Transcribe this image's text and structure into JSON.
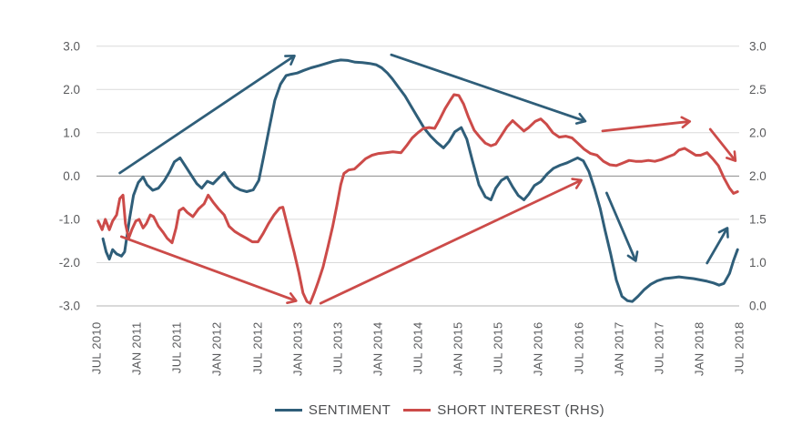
{
  "chart_data": {
    "type": "line",
    "title": "",
    "x_axis": {
      "tick_labels": [
        "JUL 2010",
        "JAN 2011",
        "JUL 2011",
        "JAN 2012",
        "JUL 2012",
        "JAN 2013",
        "JUL 2013",
        "JAN 2014",
        "JUL 2014",
        "JAN 2015",
        "JUL 2015",
        "JAN 2016",
        "JUL 2016",
        "JAN 2017",
        "JUL 2017",
        "JAN 2018",
        "JUL 2018"
      ],
      "range_years": [
        2010.5,
        2018.5
      ]
    },
    "left_axis": {
      "tick_labels": [
        "3.0",
        "2.0",
        "1.0",
        "0.0",
        "-1.0",
        "-2.0",
        "-3.0"
      ],
      "range": [
        -3,
        3
      ]
    },
    "right_axis": {
      "tick_labels": [
        "3.0",
        "2.5",
        "2.0",
        "2.0",
        "1.5",
        "1.0",
        "0.0"
      ],
      "range": [
        0,
        3
      ]
    },
    "grid": {
      "color": "#dadada",
      "zero_line_color": "#8c8c8c",
      "bottom_line_color": "#b3b3b3"
    },
    "series": [
      {
        "name": "SENTIMENT",
        "axis": "lhs",
        "color": "#2f5e79",
        "points": [
          [
            2010.58,
            -1.45
          ],
          [
            2010.62,
            -1.75
          ],
          [
            2010.66,
            -1.92
          ],
          [
            2010.7,
            -1.7
          ],
          [
            2010.75,
            -1.8
          ],
          [
            2010.81,
            -1.85
          ],
          [
            2010.85,
            -1.75
          ],
          [
            2010.91,
            -1.0
          ],
          [
            2010.96,
            -0.45
          ],
          [
            2011.02,
            -0.15
          ],
          [
            2011.08,
            -0.02
          ],
          [
            2011.13,
            -0.2
          ],
          [
            2011.2,
            -0.33
          ],
          [
            2011.27,
            -0.28
          ],
          [
            2011.34,
            -0.12
          ],
          [
            2011.41,
            0.1
          ],
          [
            2011.47,
            0.33
          ],
          [
            2011.54,
            0.42
          ],
          [
            2011.61,
            0.22
          ],
          [
            2011.68,
            0.02
          ],
          [
            2011.75,
            -0.18
          ],
          [
            2011.81,
            -0.28
          ],
          [
            2011.88,
            -0.12
          ],
          [
            2011.95,
            -0.18
          ],
          [
            2012.02,
            -0.05
          ],
          [
            2012.09,
            0.08
          ],
          [
            2012.15,
            -0.1
          ],
          [
            2012.22,
            -0.25
          ],
          [
            2012.29,
            -0.32
          ],
          [
            2012.37,
            -0.36
          ],
          [
            2012.45,
            -0.32
          ],
          [
            2012.52,
            -0.1
          ],
          [
            2012.58,
            0.45
          ],
          [
            2012.65,
            1.1
          ],
          [
            2012.72,
            1.75
          ],
          [
            2012.79,
            2.12
          ],
          [
            2012.86,
            2.32
          ],
          [
            2012.92,
            2.35
          ],
          [
            2013.0,
            2.38
          ],
          [
            2013.08,
            2.44
          ],
          [
            2013.17,
            2.5
          ],
          [
            2013.27,
            2.55
          ],
          [
            2013.36,
            2.6
          ],
          [
            2013.45,
            2.65
          ],
          [
            2013.54,
            2.68
          ],
          [
            2013.63,
            2.67
          ],
          [
            2013.72,
            2.63
          ],
          [
            2013.81,
            2.62
          ],
          [
            2013.9,
            2.6
          ],
          [
            2013.98,
            2.57
          ],
          [
            2014.05,
            2.5
          ],
          [
            2014.12,
            2.38
          ],
          [
            2014.18,
            2.25
          ],
          [
            2014.26,
            2.05
          ],
          [
            2014.34,
            1.85
          ],
          [
            2014.42,
            1.6
          ],
          [
            2014.5,
            1.35
          ],
          [
            2014.58,
            1.1
          ],
          [
            2014.66,
            0.92
          ],
          [
            2014.74,
            0.77
          ],
          [
            2014.82,
            0.65
          ],
          [
            2014.89,
            0.8
          ],
          [
            2014.96,
            1.02
          ],
          [
            2015.04,
            1.12
          ],
          [
            2015.11,
            0.85
          ],
          [
            2015.18,
            0.35
          ],
          [
            2015.26,
            -0.2
          ],
          [
            2015.34,
            -0.48
          ],
          [
            2015.41,
            -0.55
          ],
          [
            2015.47,
            -0.28
          ],
          [
            2015.54,
            -0.1
          ],
          [
            2015.61,
            -0.02
          ],
          [
            2015.68,
            -0.25
          ],
          [
            2015.75,
            -0.45
          ],
          [
            2015.82,
            -0.55
          ],
          [
            2015.88,
            -0.42
          ],
          [
            2015.95,
            -0.22
          ],
          [
            2016.03,
            -0.13
          ],
          [
            2016.11,
            0.05
          ],
          [
            2016.19,
            0.18
          ],
          [
            2016.27,
            0.25
          ],
          [
            2016.35,
            0.3
          ],
          [
            2016.43,
            0.37
          ],
          [
            2016.49,
            0.42
          ],
          [
            2016.56,
            0.35
          ],
          [
            2016.63,
            0.1
          ],
          [
            2016.7,
            -0.3
          ],
          [
            2016.77,
            -0.75
          ],
          [
            2016.83,
            -1.25
          ],
          [
            2016.9,
            -1.8
          ],
          [
            2016.97,
            -2.4
          ],
          [
            2017.04,
            -2.78
          ],
          [
            2017.11,
            -2.88
          ],
          [
            2017.17,
            -2.9
          ],
          [
            2017.24,
            -2.78
          ],
          [
            2017.32,
            -2.62
          ],
          [
            2017.4,
            -2.5
          ],
          [
            2017.48,
            -2.42
          ],
          [
            2017.57,
            -2.37
          ],
          [
            2017.66,
            -2.35
          ],
          [
            2017.75,
            -2.33
          ],
          [
            2017.84,
            -2.35
          ],
          [
            2017.93,
            -2.37
          ],
          [
            2018.02,
            -2.4
          ],
          [
            2018.1,
            -2.43
          ],
          [
            2018.18,
            -2.47
          ],
          [
            2018.25,
            -2.52
          ],
          [
            2018.31,
            -2.48
          ],
          [
            2018.38,
            -2.25
          ],
          [
            2018.43,
            -1.95
          ],
          [
            2018.48,
            -1.7
          ]
        ]
      },
      {
        "name": "SHORT INTEREST (RHS)",
        "axis": "rhs",
        "color": "#cc4b49",
        "points": [
          [
            2010.52,
            0.98
          ],
          [
            2010.57,
            0.88
          ],
          [
            2010.61,
            1.0
          ],
          [
            2010.66,
            0.88
          ],
          [
            2010.7,
            0.98
          ],
          [
            2010.75,
            1.05
          ],
          [
            2010.79,
            1.24
          ],
          [
            2010.83,
            1.28
          ],
          [
            2010.86,
            0.95
          ],
          [
            2010.9,
            0.78
          ],
          [
            2010.94,
            0.88
          ],
          [
            2010.99,
            0.98
          ],
          [
            2011.03,
            1.0
          ],
          [
            2011.08,
            0.9
          ],
          [
            2011.12,
            0.95
          ],
          [
            2011.17,
            1.05
          ],
          [
            2011.21,
            1.03
          ],
          [
            2011.27,
            0.92
          ],
          [
            2011.33,
            0.85
          ],
          [
            2011.38,
            0.78
          ],
          [
            2011.44,
            0.73
          ],
          [
            2011.49,
            0.9
          ],
          [
            2011.53,
            1.1
          ],
          [
            2011.58,
            1.13
          ],
          [
            2011.63,
            1.08
          ],
          [
            2011.7,
            1.03
          ],
          [
            2011.77,
            1.12
          ],
          [
            2011.84,
            1.18
          ],
          [
            2011.89,
            1.28
          ],
          [
            2011.95,
            1.2
          ],
          [
            2012.02,
            1.12
          ],
          [
            2012.09,
            1.05
          ],
          [
            2012.15,
            0.92
          ],
          [
            2012.22,
            0.86
          ],
          [
            2012.29,
            0.82
          ],
          [
            2012.37,
            0.78
          ],
          [
            2012.44,
            0.74
          ],
          [
            2012.51,
            0.74
          ],
          [
            2012.57,
            0.83
          ],
          [
            2012.64,
            0.95
          ],
          [
            2012.71,
            1.05
          ],
          [
            2012.78,
            1.13
          ],
          [
            2012.82,
            1.14
          ],
          [
            2012.87,
            0.95
          ],
          [
            2012.91,
            0.8
          ],
          [
            2012.96,
            0.62
          ],
          [
            2013.02,
            0.38
          ],
          [
            2013.07,
            0.15
          ],
          [
            2013.12,
            0.05
          ],
          [
            2013.16,
            0.03
          ],
          [
            2013.21,
            0.15
          ],
          [
            2013.26,
            0.28
          ],
          [
            2013.32,
            0.45
          ],
          [
            2013.38,
            0.68
          ],
          [
            2013.44,
            0.92
          ],
          [
            2013.49,
            1.15
          ],
          [
            2013.54,
            1.4
          ],
          [
            2013.58,
            1.53
          ],
          [
            2013.64,
            1.57
          ],
          [
            2013.71,
            1.58
          ],
          [
            2013.78,
            1.64
          ],
          [
            2013.85,
            1.7
          ],
          [
            2013.93,
            1.74
          ],
          [
            2014.01,
            1.76
          ],
          [
            2014.1,
            1.77
          ],
          [
            2014.19,
            1.78
          ],
          [
            2014.29,
            1.77
          ],
          [
            2014.36,
            1.85
          ],
          [
            2014.43,
            1.94
          ],
          [
            2014.5,
            2.0
          ],
          [
            2014.57,
            2.05
          ],
          [
            2014.64,
            2.06
          ],
          [
            2014.71,
            2.05
          ],
          [
            2014.77,
            2.15
          ],
          [
            2014.84,
            2.28
          ],
          [
            2014.9,
            2.37
          ],
          [
            2014.95,
            2.44
          ],
          [
            2015.01,
            2.43
          ],
          [
            2015.07,
            2.33
          ],
          [
            2015.13,
            2.18
          ],
          [
            2015.2,
            2.03
          ],
          [
            2015.27,
            1.95
          ],
          [
            2015.34,
            1.88
          ],
          [
            2015.41,
            1.85
          ],
          [
            2015.47,
            1.87
          ],
          [
            2015.54,
            1.97
          ],
          [
            2015.61,
            2.07
          ],
          [
            2015.68,
            2.14
          ],
          [
            2015.75,
            2.08
          ],
          [
            2015.82,
            2.02
          ],
          [
            2015.88,
            2.06
          ],
          [
            2015.96,
            2.13
          ],
          [
            2016.03,
            2.16
          ],
          [
            2016.1,
            2.1
          ],
          [
            2016.18,
            2.0
          ],
          [
            2016.26,
            1.95
          ],
          [
            2016.34,
            1.96
          ],
          [
            2016.42,
            1.94
          ],
          [
            2016.49,
            1.88
          ],
          [
            2016.57,
            1.81
          ],
          [
            2016.65,
            1.76
          ],
          [
            2016.73,
            1.74
          ],
          [
            2016.81,
            1.67
          ],
          [
            2016.89,
            1.63
          ],
          [
            2016.97,
            1.62
          ],
          [
            2017.05,
            1.65
          ],
          [
            2017.13,
            1.68
          ],
          [
            2017.21,
            1.67
          ],
          [
            2017.29,
            1.67
          ],
          [
            2017.37,
            1.68
          ],
          [
            2017.45,
            1.67
          ],
          [
            2017.53,
            1.69
          ],
          [
            2017.61,
            1.72
          ],
          [
            2017.69,
            1.75
          ],
          [
            2017.75,
            1.8
          ],
          [
            2017.82,
            1.82
          ],
          [
            2017.89,
            1.78
          ],
          [
            2017.96,
            1.74
          ],
          [
            2018.02,
            1.74
          ],
          [
            2018.1,
            1.77
          ],
          [
            2018.17,
            1.7
          ],
          [
            2018.24,
            1.62
          ],
          [
            2018.31,
            1.48
          ],
          [
            2018.38,
            1.36
          ],
          [
            2018.43,
            1.3
          ],
          [
            2018.48,
            1.32
          ]
        ]
      }
    ],
    "annotations": {
      "arrows": [
        {
          "series": 0,
          "axis": "lhs",
          "from": [
            2010.79,
            0.07
          ],
          "to": [
            2012.96,
            2.77
          ]
        },
        {
          "series": 0,
          "axis": "lhs",
          "from": [
            2014.17,
            2.8
          ],
          "to": [
            2016.58,
            1.27
          ]
        },
        {
          "series": 0,
          "axis": "lhs",
          "from": [
            2016.85,
            -0.39
          ],
          "to": [
            2017.21,
            -1.95
          ]
        },
        {
          "series": 0,
          "axis": "lhs",
          "from": [
            2018.1,
            -2.01
          ],
          "to": [
            2018.35,
            -1.21
          ]
        },
        {
          "series": 1,
          "axis": "rhs",
          "from": [
            2010.81,
            0.8
          ],
          "to": [
            2012.98,
            0.06
          ]
        },
        {
          "series": 1,
          "axis": "rhs",
          "from": [
            2013.29,
            0.03
          ],
          "to": [
            2016.53,
            1.45
          ]
        },
        {
          "series": 1,
          "axis": "rhs",
          "from": [
            2016.8,
            2.02
          ],
          "to": [
            2017.88,
            2.13
          ]
        },
        {
          "series": 1,
          "axis": "rhs",
          "from": [
            2018.14,
            2.04
          ],
          "to": [
            2018.45,
            1.68
          ]
        }
      ]
    },
    "legend_position": "bottom-center"
  },
  "legend": {
    "items": [
      {
        "label": "SENTIMENT",
        "color": "#2f5e79"
      },
      {
        "label": "SHORT INTEREST (RHS)",
        "color": "#cc4b49"
      }
    ]
  }
}
